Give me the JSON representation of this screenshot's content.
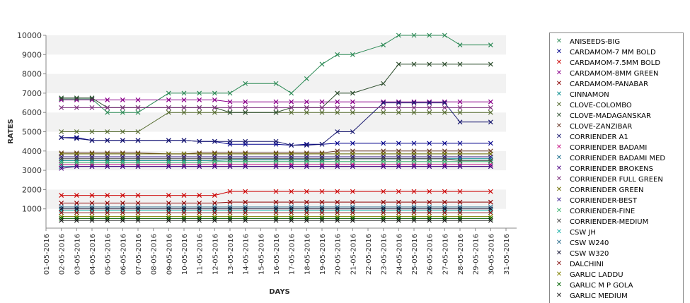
{
  "chart_data": {
    "type": "line",
    "xlabel": "DAYS",
    "ylabel": "RATES",
    "ylim": [
      0,
      10000
    ],
    "yticks": [
      1000,
      2000,
      3000,
      4000,
      5000,
      6000,
      7000,
      8000,
      9000,
      10000
    ],
    "x": [
      "01-05-2016",
      "02-05-2016",
      "03-05-2016",
      "04-05-2016",
      "05-05-2016",
      "06-05-2016",
      "07-05-2016",
      "08-05-2016",
      "09-05-2016",
      "10-05-2016",
      "11-05-2016",
      "12-05-2016",
      "13-05-2016",
      "14-05-2016",
      "15-05-2016",
      "16-05-2016",
      "17-05-2016",
      "18-05-2016",
      "19-05-2016",
      "20-05-2016",
      "21-05-2016",
      "22-05-2016",
      "23-05-2016",
      "24-05-2016",
      "25-05-2016",
      "26-05-2016",
      "27-05-2016",
      "28-05-2016",
      "29-05-2016",
      "30-05-2016",
      "31-05-2016"
    ],
    "grid": "horizontal bands",
    "legend": "right",
    "series": [
      {
        "name": "ANISEEDS-BIG",
        "color": "#2e8b57",
        "values": [
          null,
          6700,
          6700,
          6700,
          6000,
          6000,
          6000,
          null,
          7000,
          7000,
          7000,
          7000,
          7000,
          7500,
          null,
          7500,
          7000,
          7750,
          8500,
          9000,
          9000,
          null,
          9500,
          10000,
          10000,
          10000,
          10000,
          9500,
          null,
          9500,
          null
        ]
      },
      {
        "name": "CARDAMOM-7 MM BOLD",
        "color": "#00008b",
        "values": [
          null,
          4700,
          4700,
          4550,
          4550,
          4550,
          4550,
          null,
          4550,
          4550,
          4500,
          4500,
          4350,
          4350,
          null,
          4350,
          4300,
          4350,
          4350,
          4400,
          4400,
          null,
          4400,
          4400,
          4400,
          4400,
          4400,
          4400,
          null,
          4400,
          null
        ]
      },
      {
        "name": "CARDAMOM-7.5MM BOLD",
        "color": "#cc0000",
        "values": [
          null,
          1700,
          1700,
          1700,
          1700,
          1700,
          1700,
          null,
          1700,
          1700,
          1700,
          1700,
          1900,
          1900,
          null,
          1900,
          1900,
          1900,
          1900,
          1900,
          1900,
          null,
          1900,
          1900,
          1900,
          1900,
          1900,
          1900,
          null,
          1900,
          null
        ]
      },
      {
        "name": "CARDAMOM-8MM GREEN",
        "color": "#8b008b",
        "values": [
          null,
          6650,
          6650,
          6650,
          6650,
          6650,
          6650,
          null,
          6650,
          6650,
          6650,
          6650,
          6550,
          6550,
          null,
          6550,
          6550,
          6550,
          6550,
          6550,
          6550,
          null,
          6550,
          6550,
          6550,
          6550,
          6550,
          6550,
          null,
          6550,
          null
        ]
      },
      {
        "name": "CARDAMOM-PANABAR",
        "color": "#8b0000",
        "values": [
          null,
          1300,
          1300,
          1300,
          1300,
          1300,
          1300,
          null,
          1300,
          1300,
          1300,
          1300,
          1350,
          1350,
          null,
          1350,
          1350,
          1350,
          1350,
          1350,
          1350,
          null,
          1350,
          1350,
          1350,
          1350,
          1350,
          1350,
          null,
          1350,
          null
        ]
      },
      {
        "name": "CINNAMON",
        "color": "#008b8b",
        "values": [
          null,
          3500,
          3500,
          3500,
          3500,
          3500,
          3500,
          null,
          3500,
          3500,
          3500,
          3500,
          3550,
          3550,
          null,
          3550,
          3550,
          3550,
          3550,
          3600,
          3600,
          null,
          3600,
          3600,
          3600,
          3600,
          3600,
          3600,
          null,
          3600,
          null
        ]
      },
      {
        "name": "CLOVE-COLOMBO",
        "color": "#556b2f",
        "values": [
          null,
          5000,
          5000,
          5000,
          5000,
          5000,
          5000,
          null,
          6000,
          6000,
          6000,
          6000,
          6000,
          6000,
          null,
          6000,
          6000,
          6000,
          6000,
          6000,
          6000,
          null,
          6000,
          6000,
          6000,
          6000,
          6000,
          6000,
          null,
          6000,
          null
        ]
      },
      {
        "name": "CLOVE-MADAGANSKAR",
        "color": "#2f4f2f",
        "values": [
          null,
          6750,
          6750,
          6750,
          6250,
          6250,
          6250,
          null,
          6250,
          6250,
          6250,
          6250,
          6000,
          6000,
          null,
          6000,
          6250,
          6250,
          6250,
          7000,
          7000,
          null,
          7500,
          8500,
          8500,
          8500,
          8500,
          8500,
          null,
          8500,
          null
        ]
      },
      {
        "name": "CLOVE-ZANZIBAR",
        "color": "#6b3a2a",
        "values": [
          null,
          3900,
          3900,
          3900,
          3900,
          3900,
          3900,
          null,
          3850,
          3850,
          3900,
          3900,
          3900,
          3900,
          null,
          3900,
          3900,
          3900,
          3900,
          4000,
          4000,
          null,
          4000,
          4000,
          4000,
          4000,
          4000,
          4000,
          null,
          4000,
          null
        ]
      },
      {
        "name": "CORRIENDER A1",
        "color": "#191970",
        "values": [
          null,
          4700,
          4650,
          4550,
          4550,
          4550,
          4550,
          null,
          4550,
          4550,
          4500,
          4500,
          4500,
          4500,
          null,
          4500,
          4300,
          4300,
          4350,
          5000,
          5000,
          null,
          6500,
          6500,
          6500,
          6500,
          6500,
          5500,
          null,
          5500,
          null
        ]
      },
      {
        "name": "CORRIENDER BADAMI",
        "color": "#c71585",
        "values": [
          null,
          3300,
          3300,
          3300,
          3300,
          3300,
          3300,
          null,
          3300,
          3300,
          3300,
          3300,
          3300,
          3300,
          null,
          3300,
          3300,
          3300,
          3300,
          3300,
          3300,
          null,
          3300,
          3300,
          3300,
          3300,
          3300,
          3300,
          null,
          3300,
          null
        ]
      },
      {
        "name": "CORRIENDER BADAMI MED",
        "color": "#1e6f8f",
        "values": [
          null,
          3200,
          3200,
          3200,
          3200,
          3200,
          3200,
          null,
          3200,
          3200,
          3200,
          3200,
          3200,
          3200,
          null,
          3200,
          3200,
          3200,
          3200,
          3200,
          3200,
          null,
          3200,
          3200,
          3200,
          3200,
          3200,
          3200,
          null,
          3200,
          null
        ]
      },
      {
        "name": "CORRIENDER BROKENS",
        "color": "#4b0082",
        "values": [
          null,
          3100,
          3200,
          3200,
          3200,
          3200,
          3200,
          null,
          3200,
          3200,
          3200,
          3200,
          3200,
          3200,
          null,
          3200,
          3200,
          3200,
          3200,
          3200,
          3200,
          null,
          3200,
          3200,
          3200,
          3200,
          3200,
          3200,
          null,
          3200,
          null
        ]
      },
      {
        "name": "CORRIENDER FULL GREEN",
        "color": "#7b2d7b",
        "values": [
          null,
          6250,
          6250,
          6250,
          6250,
          6250,
          6250,
          null,
          6250,
          6250,
          6250,
          6250,
          6250,
          6250,
          null,
          6250,
          6250,
          6250,
          6250,
          6250,
          6250,
          null,
          6250,
          6250,
          6250,
          6250,
          6250,
          6250,
          null,
          6250,
          null
        ]
      },
      {
        "name": "CORRIENDER GREEN",
        "color": "#6b6b00",
        "values": [
          null,
          3850,
          3850,
          3850,
          3850,
          3850,
          3850,
          null,
          3850,
          3850,
          3850,
          3850,
          3850,
          3850,
          null,
          3850,
          3850,
          3850,
          3850,
          3850,
          3850,
          null,
          3850,
          3850,
          3850,
          3850,
          3850,
          3850,
          null,
          3850,
          null
        ]
      },
      {
        "name": "CORRIENDER-BEST",
        "color": "#3a1f8f",
        "values": [
          null,
          3700,
          3700,
          3700,
          3700,
          3700,
          3700,
          null,
          3700,
          3700,
          3700,
          3700,
          3700,
          3700,
          null,
          3700,
          3700,
          3700,
          3700,
          3700,
          3700,
          null,
          3700,
          3700,
          3700,
          3700,
          3700,
          3700,
          null,
          3700,
          null
        ]
      },
      {
        "name": "CORRIENDER-FINE",
        "color": "#3cb371",
        "values": [
          null,
          3400,
          3400,
          3400,
          3400,
          3400,
          3400,
          null,
          3400,
          3400,
          3400,
          3450,
          3450,
          3450,
          null,
          3450,
          3450,
          3450,
          3450,
          3450,
          3450,
          null,
          3450,
          3450,
          3450,
          3450,
          3450,
          3450,
          null,
          3450,
          null
        ]
      },
      {
        "name": "CORRIENDER-MEDIUM",
        "color": "#444444",
        "values": [
          null,
          3600,
          3600,
          3600,
          3600,
          3600,
          3600,
          null,
          3600,
          3600,
          3600,
          3600,
          3600,
          3600,
          null,
          3600,
          3600,
          3600,
          3600,
          3600,
          3600,
          null,
          3600,
          3600,
          3600,
          3600,
          3600,
          3500,
          null,
          3500,
          null
        ]
      },
      {
        "name": "CSW JH",
        "color": "#20b2aa",
        "values": [
          null,
          900,
          900,
          900,
          900,
          900,
          900,
          null,
          900,
          900,
          900,
          900,
          900,
          900,
          null,
          900,
          900,
          900,
          900,
          900,
          900,
          null,
          900,
          900,
          900,
          900,
          900,
          900,
          null,
          900,
          null
        ]
      },
      {
        "name": "CSW W240",
        "color": "#2f6f8f",
        "values": [
          null,
          1100,
          1100,
          1100,
          1100,
          1100,
          1100,
          null,
          1100,
          1100,
          1100,
          1100,
          1100,
          1100,
          null,
          1100,
          1100,
          1100,
          1100,
          1100,
          1100,
          null,
          1100,
          1100,
          1100,
          1100,
          1100,
          1100,
          null,
          1100,
          null
        ]
      },
      {
        "name": "CSW W320",
        "color": "#101030",
        "values": [
          null,
          1000,
          1000,
          1000,
          1000,
          1000,
          1000,
          null,
          1000,
          1000,
          1000,
          1000,
          1000,
          1000,
          null,
          1000,
          1000,
          1000,
          1000,
          1000,
          1000,
          null,
          1000,
          1000,
          1000,
          1000,
          1000,
          1000,
          null,
          1000,
          null
        ]
      },
      {
        "name": "DALCHINI",
        "color": "#8b1a1a",
        "values": [
          null,
          800,
          800,
          800,
          800,
          800,
          800,
          null,
          800,
          800,
          800,
          800,
          800,
          800,
          null,
          800,
          800,
          800,
          800,
          800,
          800,
          null,
          800,
          800,
          800,
          800,
          800,
          800,
          null,
          800,
          null
        ]
      },
      {
        "name": "GARLIC LADDU",
        "color": "#808000",
        "values": [
          null,
          600,
          600,
          600,
          600,
          600,
          600,
          null,
          600,
          600,
          600,
          600,
          600,
          600,
          null,
          600,
          600,
          600,
          600,
          600,
          600,
          null,
          600,
          600,
          600,
          600,
          600,
          600,
          null,
          600,
          null
        ]
      },
      {
        "name": "GARLIC M P GOLA",
        "color": "#006400",
        "values": [
          null,
          500,
          500,
          500,
          500,
          500,
          500,
          null,
          500,
          500,
          500,
          500,
          500,
          500,
          null,
          500,
          500,
          500,
          500,
          500,
          500,
          null,
          500,
          500,
          500,
          500,
          500,
          500,
          null,
          500,
          null
        ]
      },
      {
        "name": "GARLIC MEDIUM",
        "color": "#222222",
        "values": [
          null,
          400,
          400,
          400,
          400,
          400,
          400,
          null,
          400,
          400,
          400,
          400,
          400,
          400,
          null,
          400,
          400,
          400,
          400,
          400,
          400,
          null,
          400,
          400,
          400,
          400,
          400,
          400,
          null,
          400,
          null
        ]
      }
    ]
  }
}
